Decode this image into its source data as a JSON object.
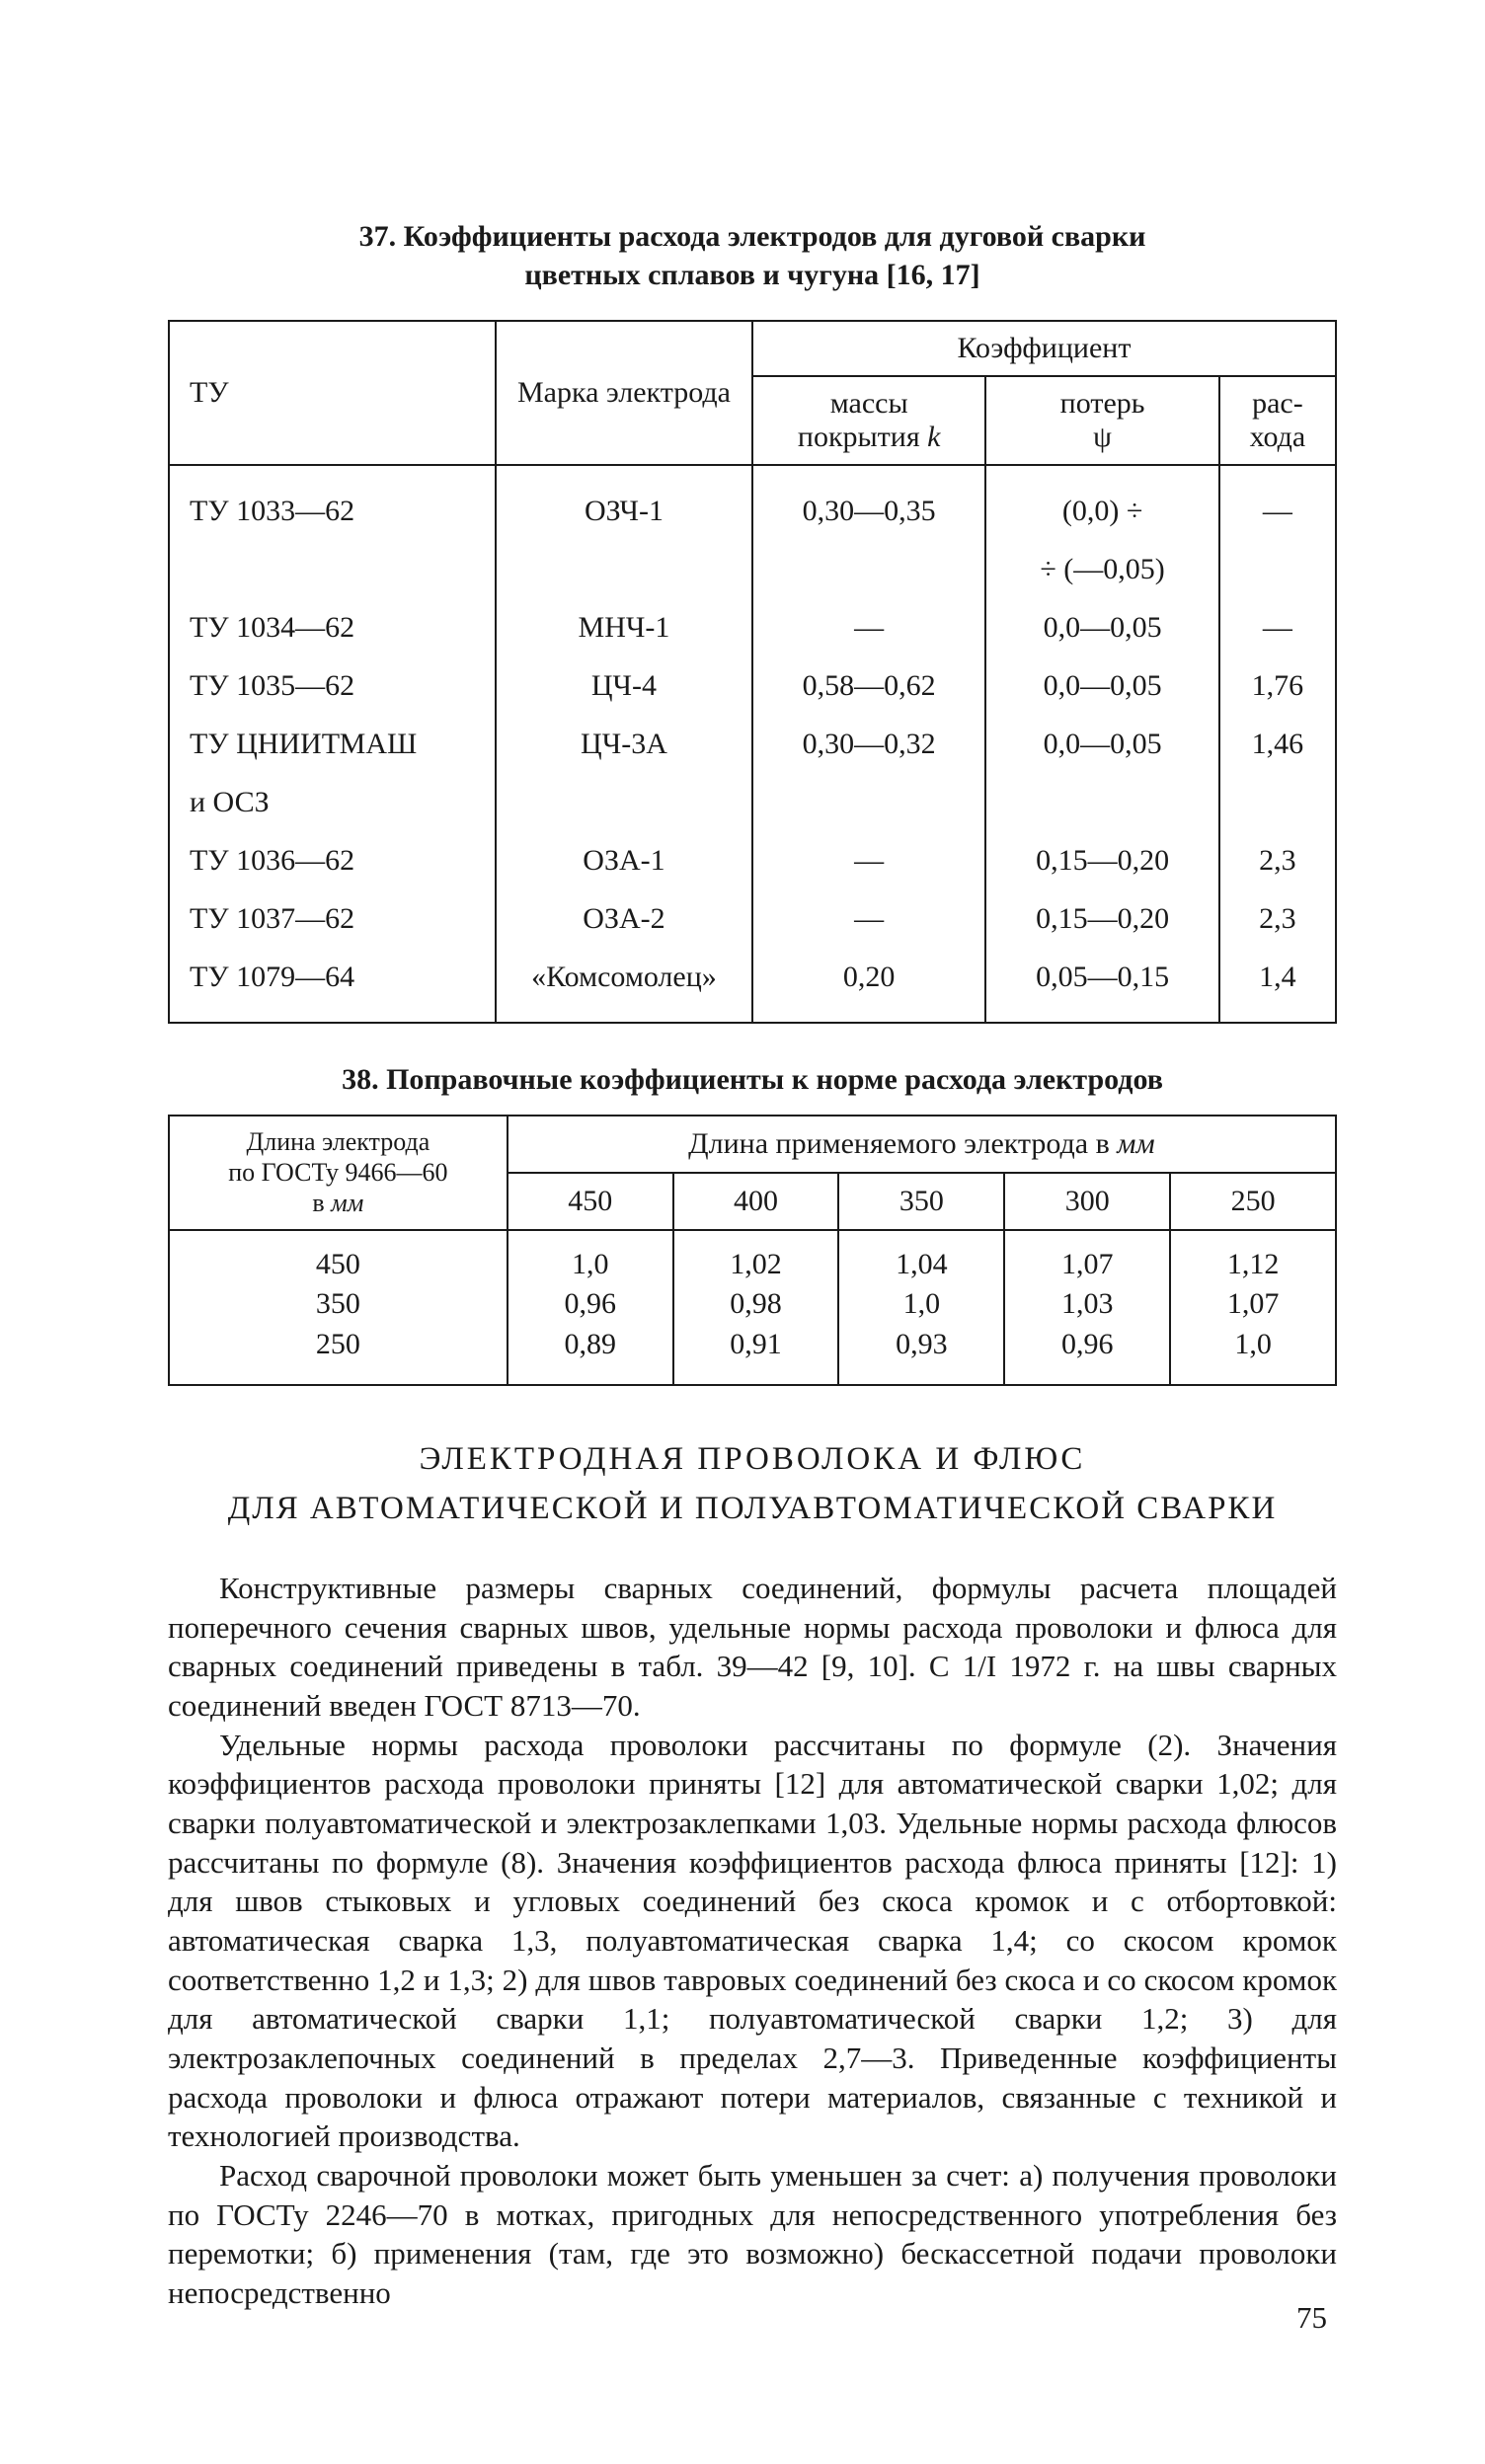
{
  "table37": {
    "caption_line1": "37. Коэффициенты расхода электродов для дуговой сварки",
    "caption_line2": "цветных сплавов и чугуна [16, 17]",
    "head": {
      "c1": "ТУ",
      "c2": "Марка электрода",
      "kgroup": "Коэффициент",
      "c3": "массы покрытия k",
      "c4": "потерь ψ",
      "c5": "рас-хода"
    },
    "rows": [
      {
        "c1": "ТУ 1033—62",
        "c2": "ОЗЧ-1",
        "c3": "0,30—0,35",
        "c4": "(0,0) ÷",
        "c5": "—"
      },
      {
        "c1": "",
        "c2": "",
        "c3": "",
        "c4": "÷ (—0,05)",
        "c5": ""
      },
      {
        "c1": "ТУ 1034—62",
        "c2": "МНЧ-1",
        "c3": "—",
        "c4": "0,0—0,05",
        "c5": "—"
      },
      {
        "c1": "ТУ 1035—62",
        "c2": "ЦЧ-4",
        "c3": "0,58—0,62",
        "c4": "0,0—0,05",
        "c5": "1,76"
      },
      {
        "c1": "ТУ ЦНИИТМАШ",
        "c2": "ЦЧ-3А",
        "c3": "0,30—0,32",
        "c4": "0,0—0,05",
        "c5": "1,46"
      },
      {
        "c1": "и ОСЗ",
        "c2": "",
        "c3": "",
        "c4": "",
        "c5": ""
      },
      {
        "c1": "ТУ 1036—62",
        "c2": "ОЗА-1",
        "c3": "—",
        "c4": "0,15—0,20",
        "c5": "2,3"
      },
      {
        "c1": "ТУ 1037—62",
        "c2": "ОЗА-2",
        "c3": "—",
        "c4": "0,15—0,20",
        "c5": "2,3"
      },
      {
        "c1": "ТУ 1079—64",
        "c2": "«Комсомолец»",
        "c3": "0,20",
        "c4": "0,05—0,15",
        "c5": "1,4"
      }
    ]
  },
  "table38": {
    "caption": "38. Поправочные коэффициенты к норме расхода электродов",
    "row_header": "Длина электрода по ГОСТу 9466—60 в мм",
    "group_header": "Длина применяемого электрода в мм",
    "cols": [
      "450",
      "400",
      "350",
      "300",
      "250"
    ],
    "lengths": [
      "450",
      "350",
      "250"
    ],
    "vals": [
      [
        "1,0",
        "1,02",
        "1,04",
        "1,07",
        "1,12"
      ],
      [
        "0,96",
        "0,98",
        "1,0",
        "1,03",
        "1,07"
      ],
      [
        "0,89",
        "0,91",
        "0,93",
        "0,96",
        "1,0"
      ]
    ]
  },
  "section": {
    "line1": "ЭЛЕКТРОДНАЯ ПРОВОЛОКА И ФЛЮС",
    "line2": "ДЛЯ АВТОМАТИЧЕСКОЙ И ПОЛУАВТОМАТИЧЕСКОЙ СВАРКИ"
  },
  "paras": {
    "p1": "Конструктивные размеры сварных соединений, формулы расчета площадей поперечного сечения сварных швов, удельные нормы расхода проволоки и флюса для сварных соединений приведены в табл. 39—42 [9, 10]. С 1/I 1972 г. на швы сварных соединений введен ГОСТ 8713—70.",
    "p2": "Удельные нормы расхода проволоки рассчитаны по формуле (2). Значения коэффициентов расхода проволоки приняты [12] для автоматической сварки 1,02; для сварки полуавтоматической и электрозаклепками 1,03. Удельные нормы расхода флюсов рассчитаны по формуле (8). Значения коэффициентов расхода флюса приняты [12]: 1) для швов стыковых и угловых соединений без скоса кромок и с отбортовкой: автоматическая сварка 1,3, полуавтоматическая сварка 1,4; со скосом кромок соответственно 1,2 и 1,3; 2) для швов тавровых соединений без скоса и со скосом кромок для автоматической сварки 1,1; полуавтоматической сварки 1,2; 3) для электрозаклепочных соединений в пределах 2,7—3. Приведенные коэффициенты расхода проволоки и флюса отражают потери материалов, связанные с техникой и технологией производства.",
    "p3": "Расход сварочной проволоки может быть уменьшен за счет: а) получения проволоки по ГОСТу 2246—70 в мотках, пригодных для непосредственного употребления без перемотки; б) применения (там, где это возможно) бескассетной подачи проволоки непосредственно"
  },
  "page_number": "75"
}
